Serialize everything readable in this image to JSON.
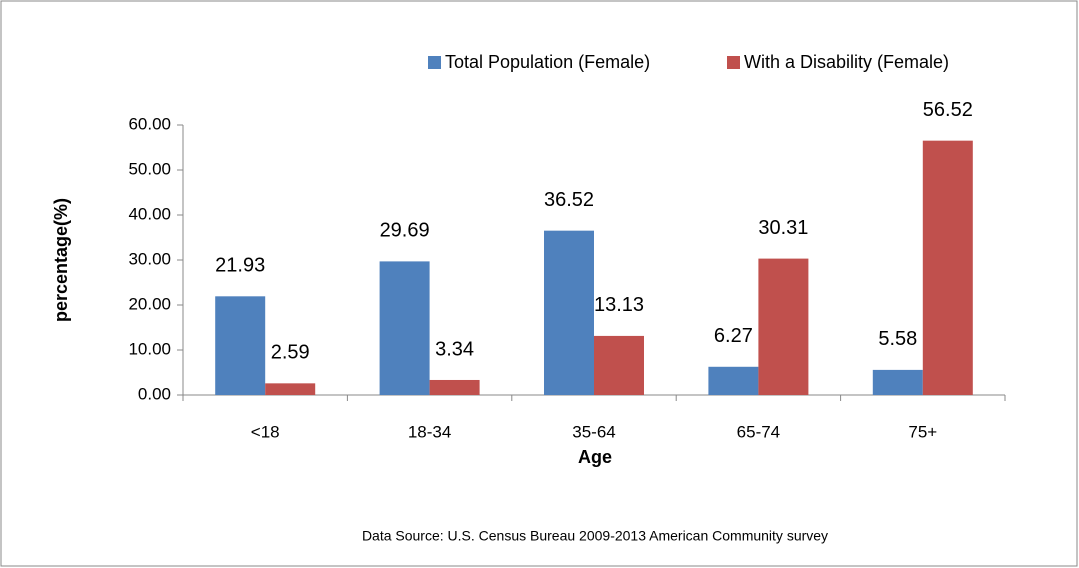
{
  "chart_data": {
    "type": "bar",
    "x_label": "Age",
    "y_label": "percentage(%)",
    "source": "Data Source: U.S. Census Bureau 2009-2013 American Community survey",
    "categories": [
      "<18",
      "18-34",
      "35-64",
      "65-74",
      "75+"
    ],
    "series": [
      {
        "name": "Total Population (Female)",
        "color": "#4f81bd",
        "values": [
          21.93,
          29.69,
          36.52,
          6.27,
          5.58
        ]
      },
      {
        "name": "With a Disability (Female)",
        "color": "#c0504d",
        "values": [
          2.59,
          3.34,
          13.13,
          30.31,
          56.52
        ]
      }
    ],
    "ylim": [
      0,
      60
    ],
    "yticks": [
      {
        "value": 0,
        "label": "0.00"
      },
      {
        "value": 10,
        "label": "10.00"
      },
      {
        "value": 20,
        "label": "20.00"
      },
      {
        "value": 30,
        "label": "30.00"
      },
      {
        "value": 40,
        "label": "40.00"
      },
      {
        "value": 50,
        "label": "50.00"
      },
      {
        "value": 60,
        "label": "60.00"
      }
    ],
    "legend": "top",
    "grid": false
  }
}
